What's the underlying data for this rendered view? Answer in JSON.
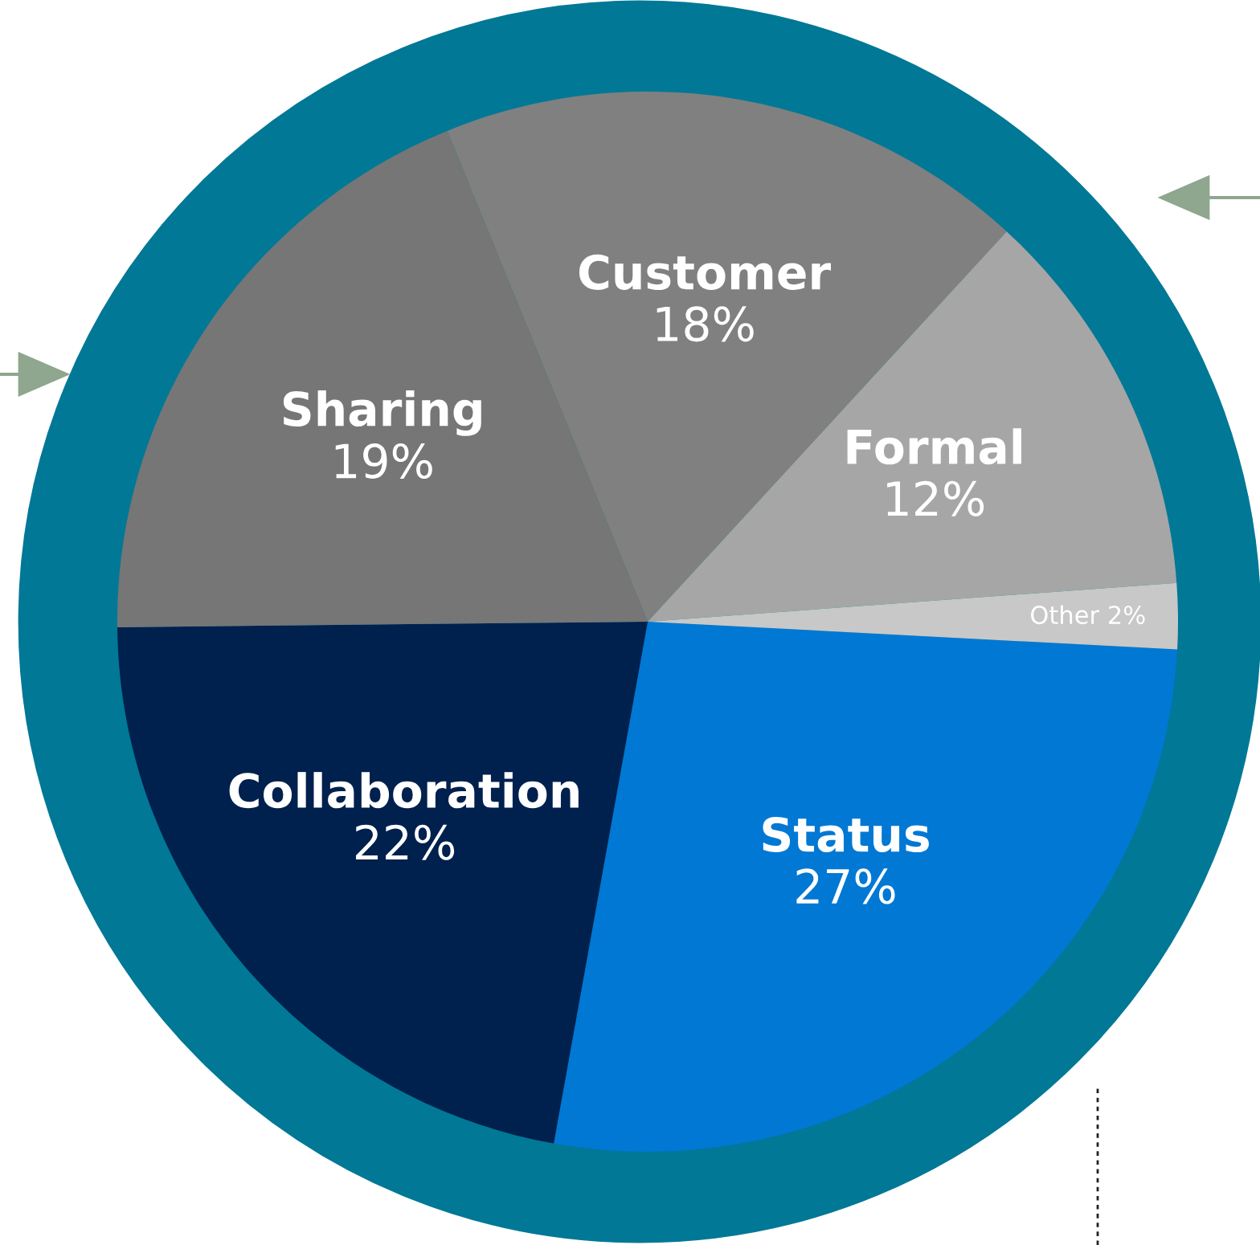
{
  "chart_data": {
    "type": "pie",
    "categories": [
      "Status",
      "Collaboration",
      "Sharing",
      "Customer",
      "Formal",
      "Other"
    ],
    "values": [
      27,
      22,
      19,
      18,
      12,
      2
    ],
    "value_labels": [
      "27%",
      "22%",
      "19%",
      "18%",
      "12%",
      "2%"
    ],
    "colors": [
      "#0078d4",
      "#00204e",
      "#767676",
      "#808080",
      "#a6a6a6",
      "#c8c8c8"
    ]
  }
}
